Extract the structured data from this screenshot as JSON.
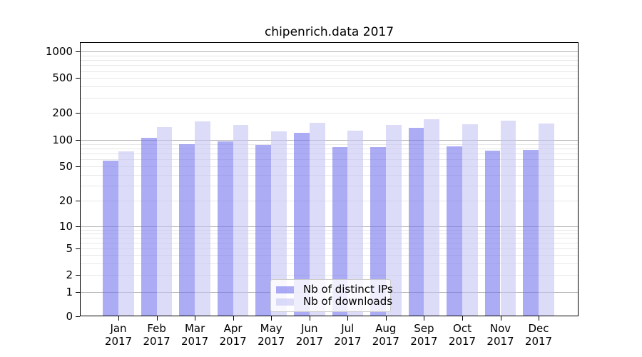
{
  "chart_data": {
    "type": "bar",
    "title": "chipenrich.data 2017",
    "categories": [
      "Jan 2017",
      "Feb 2017",
      "Mar 2017",
      "Apr 2017",
      "May 2017",
      "Jun 2017",
      "Jul 2017",
      "Aug 2017",
      "Sep 2017",
      "Oct 2017",
      "Nov 2017",
      "Dec 2017"
    ],
    "x_tick_line1": [
      "Jan",
      "Feb",
      "Mar",
      "Apr",
      "May",
      "Jun",
      "Jul",
      "Aug",
      "Sep",
      "Oct",
      "Nov",
      "Dec"
    ],
    "x_tick_line2": "2017",
    "series": [
      {
        "name": "Nb of distinct IPs",
        "color": "rgba(112,112,238,0.58)",
        "apparent_color": "#aaaaf1",
        "values": [
          58,
          105,
          89,
          96,
          87,
          121,
          83,
          83,
          136,
          85,
          76,
          77
        ]
      },
      {
        "name": "Nb of downloads",
        "color": "rgba(195,195,245,0.58)",
        "apparent_color": "#dcdcf9",
        "values": [
          74,
          140,
          160,
          148,
          124,
          155,
          126,
          148,
          169,
          150,
          164,
          152
        ]
      }
    ],
    "y_axis": {
      "scale": "symlog",
      "tick_labels": [
        "1000",
        "500",
        "200",
        "100",
        "50",
        "20",
        "10",
        "5",
        "2",
        "1",
        "0"
      ],
      "tick_values": [
        1000,
        500,
        200,
        100,
        50,
        20,
        10,
        5,
        2,
        1,
        0
      ],
      "range_top": 1300
    },
    "grid": {
      "on": true,
      "major_values": [
        1,
        10,
        100,
        1000
      ],
      "minor_values": [
        2,
        3,
        4,
        5,
        6,
        7,
        8,
        9,
        20,
        30,
        40,
        50,
        60,
        70,
        80,
        90,
        200,
        300,
        400,
        500,
        600,
        700,
        800,
        900
      ],
      "major_color": "#b3b3b3",
      "minor_color": "#e7e7e7"
    },
    "legend": {
      "position": "lower center",
      "entries": [
        "Nb of distinct IPs",
        "Nb of downloads"
      ]
    }
  }
}
